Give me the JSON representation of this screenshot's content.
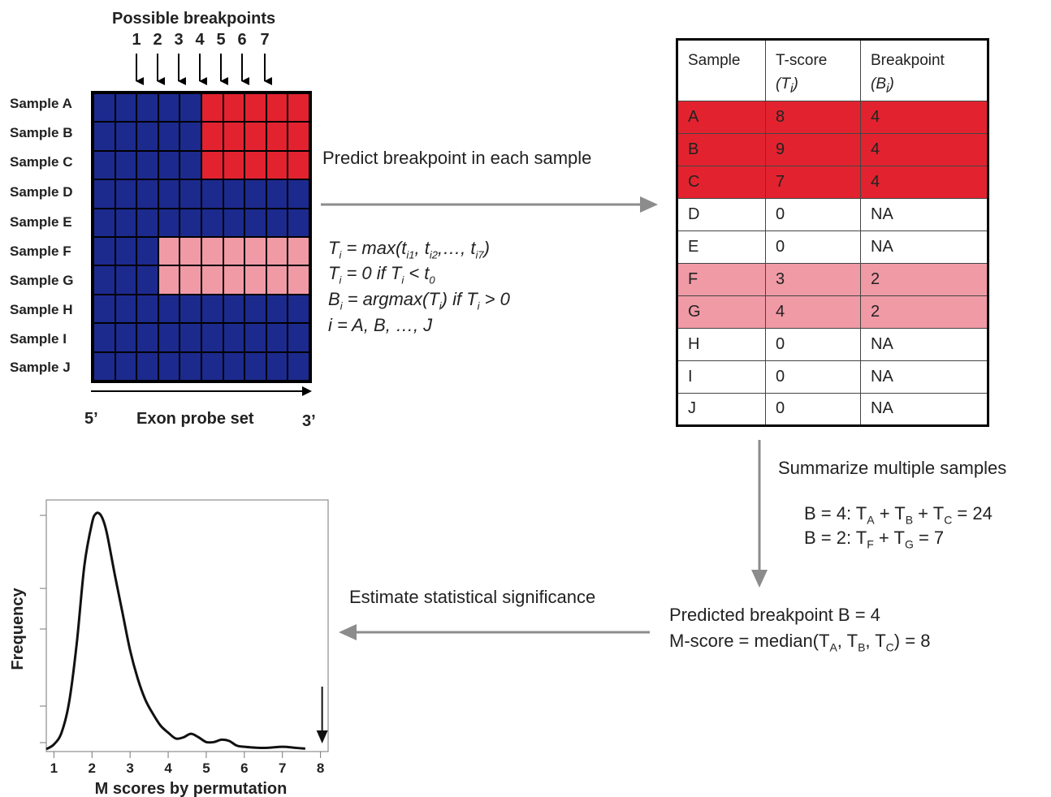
{
  "colors": {
    "blue": "#1c2a8e",
    "red": "#e2232f",
    "pink": "#f09aa6",
    "arrow": "#8c8c8c"
  },
  "grid": {
    "title": "Possible breakpoints",
    "breakpoints": [
      "1",
      "2",
      "3",
      "4",
      "5",
      "6",
      "7"
    ],
    "rows": [
      {
        "label": "Sample A",
        "fill": "red",
        "from": 5,
        "to": 9
      },
      {
        "label": "Sample B",
        "fill": "red",
        "from": 5,
        "to": 9
      },
      {
        "label": "Sample C",
        "fill": "red",
        "from": 5,
        "to": 9
      },
      {
        "label": "Sample D",
        "fill": null,
        "from": null,
        "to": null
      },
      {
        "label": "Sample E",
        "fill": null,
        "from": null,
        "to": null
      },
      {
        "label": "Sample F",
        "fill": "pink",
        "from": 3,
        "to": 9
      },
      {
        "label": "Sample G",
        "fill": "pink",
        "from": 3,
        "to": 9
      },
      {
        "label": "Sample H",
        "fill": null,
        "from": null,
        "to": null
      },
      {
        "label": "Sample I",
        "fill": null,
        "from": null,
        "to": null
      },
      {
        "label": "Sample J",
        "fill": null,
        "from": null,
        "to": null
      }
    ],
    "axis_left": "5’",
    "axis_label": "Exon probe set",
    "axis_right": "3’"
  },
  "step1": {
    "label": "Predict breakpoint in each sample"
  },
  "formulas": {
    "line1": "T<sub>i</sub> = max(t<sub>i1</sub>, t<sub>i2</sub>,…, t<sub>i7</sub>)",
    "line2": "T<sub>i</sub> = 0  if  T<sub>i</sub> &lt; t<sub>0</sub>",
    "line3": "B<sub>i</sub> = argmax(T<sub>i</sub>)  if  T<sub>i</sub> &gt; 0",
    "line4": "i = A, B, …, J"
  },
  "table": {
    "headers": [
      {
        "line1": "Sample",
        "line2": ""
      },
      {
        "line1": "T-score",
        "line2": "(T<sub>i</sub>)"
      },
      {
        "line1": "Breakpoint",
        "line2": "(B<sub>i</sub>)"
      }
    ],
    "rows": [
      {
        "sample": "A",
        "t": "8",
        "b": "4",
        "fill": "red"
      },
      {
        "sample": "B",
        "t": "9",
        "b": "4",
        "fill": "red"
      },
      {
        "sample": "C",
        "t": "7",
        "b": "4",
        "fill": "red"
      },
      {
        "sample": "D",
        "t": "0",
        "b": "NA",
        "fill": null
      },
      {
        "sample": "E",
        "t": "0",
        "b": "NA",
        "fill": null
      },
      {
        "sample": "F",
        "t": "3",
        "b": "2",
        "fill": "pink"
      },
      {
        "sample": "G",
        "t": "4",
        "b": "2",
        "fill": "pink"
      },
      {
        "sample": "H",
        "t": "0",
        "b": "NA",
        "fill": null
      },
      {
        "sample": "I",
        "t": "0",
        "b": "NA",
        "fill": null
      },
      {
        "sample": "J",
        "t": "0",
        "b": "NA",
        "fill": null
      }
    ]
  },
  "step2": {
    "label": "Summarize multiple samples",
    "sum1": "B = 4: T<sub>A</sub> + T<sub>B</sub> + T<sub>C</sub> = 24",
    "sum2": "B = 2: T<sub>F</sub> + T<sub>G</sub> = 7"
  },
  "result": {
    "line1": "Predicted breakpoint B = 4",
    "line2": "M-score = median(T<sub>A</sub>, T<sub>B</sub>, T<sub>C</sub>) = 8"
  },
  "step3": {
    "label": "Estimate statistical significance"
  },
  "chart_data": {
    "type": "line",
    "title": "",
    "xlabel": "M scores by permutation",
    "ylabel": "Frequency",
    "xlim": [
      0.8,
      8.2
    ],
    "ylim": [
      0,
      1
    ],
    "x_ticks": [
      "1",
      "2",
      "3",
      "4",
      "5",
      "6",
      "7",
      "8"
    ],
    "observed_marker_x": 8,
    "series": [
      {
        "x": [
          0.8,
          1.0,
          1.2,
          1.4,
          1.6,
          1.8,
          2.0,
          2.1,
          2.2,
          2.3,
          2.4,
          2.6,
          2.8,
          3.0,
          3.2,
          3.4,
          3.6,
          3.8,
          4.0,
          4.2,
          4.4,
          4.6,
          4.8,
          5.0,
          5.2,
          5.4,
          5.6,
          5.8,
          6.0,
          6.5,
          7.0,
          7.3,
          7.6
        ],
        "y": [
          0.0,
          0.02,
          0.07,
          0.2,
          0.45,
          0.78,
          0.96,
          1.0,
          1.0,
          0.97,
          0.91,
          0.74,
          0.58,
          0.42,
          0.3,
          0.21,
          0.15,
          0.1,
          0.07,
          0.045,
          0.05,
          0.065,
          0.05,
          0.03,
          0.03,
          0.04,
          0.035,
          0.015,
          0.01,
          0.005,
          0.01,
          0.006,
          0.002
        ]
      }
    ]
  }
}
